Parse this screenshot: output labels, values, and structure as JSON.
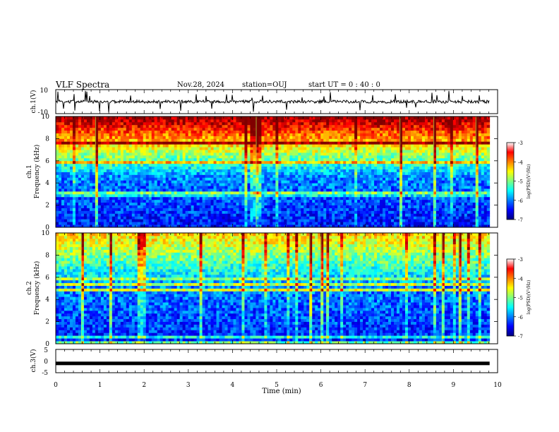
{
  "header": {
    "title": "VLF Spectra",
    "date": "Nov.28, 2024",
    "station": "station=OUJ",
    "start_ut": "start  UT  =   0  : 40 : 0"
  },
  "chart_data": [
    {
      "type": "line",
      "name": "ch1-waveform",
      "ylabel": "ch.1(V)",
      "ylim": [
        -10,
        10
      ],
      "yticks": [
        "10",
        "-10"
      ],
      "baseline_value": 0,
      "x_range": [
        0,
        9.82
      ],
      "color": "#000000"
    },
    {
      "type": "heatmap",
      "name": "ch1-spectrogram",
      "ylabel": "ch.1\nFrequency (kHz)",
      "ylim": [
        0,
        10
      ],
      "yticks": [
        "0",
        "2",
        "4",
        "6",
        "8",
        "10"
      ],
      "x_range": [
        0,
        9.82
      ],
      "colorbar": {
        "label": "log(PSD)(V²/Hz)",
        "range": [
          -7,
          -3
        ],
        "ticks": [
          "-3",
          "-4",
          "-5",
          "-6",
          "-7"
        ]
      }
    },
    {
      "type": "heatmap",
      "name": "ch2-spectrogram",
      "ylabel": "ch.2\nFrequency (kHz)",
      "ylim": [
        0,
        10
      ],
      "yticks": [
        "0",
        "2",
        "4",
        "6",
        "8",
        "10"
      ],
      "x_range": [
        0,
        9.82
      ],
      "colorbar": {
        "label": "log(PSD)(V²/Hz)",
        "range": [
          -7,
          -3
        ],
        "ticks": [
          "-3",
          "-4",
          "-5",
          "-6",
          "-7"
        ]
      }
    },
    {
      "type": "line",
      "name": "ch3-waveform",
      "ylabel": "ch.3(V)",
      "ylim": [
        -5,
        5
      ],
      "yticks": [
        "5",
        "0",
        "-5"
      ],
      "baseline_value": -1,
      "x_range": [
        0,
        9.82
      ],
      "color": "#000000"
    }
  ],
  "xaxis": {
    "label": "Time (min)",
    "xlim": [
      0,
      10
    ],
    "ticks": [
      "0",
      "1",
      "2",
      "3",
      "4",
      "5",
      "6",
      "7",
      "8",
      "9",
      "10"
    ]
  }
}
